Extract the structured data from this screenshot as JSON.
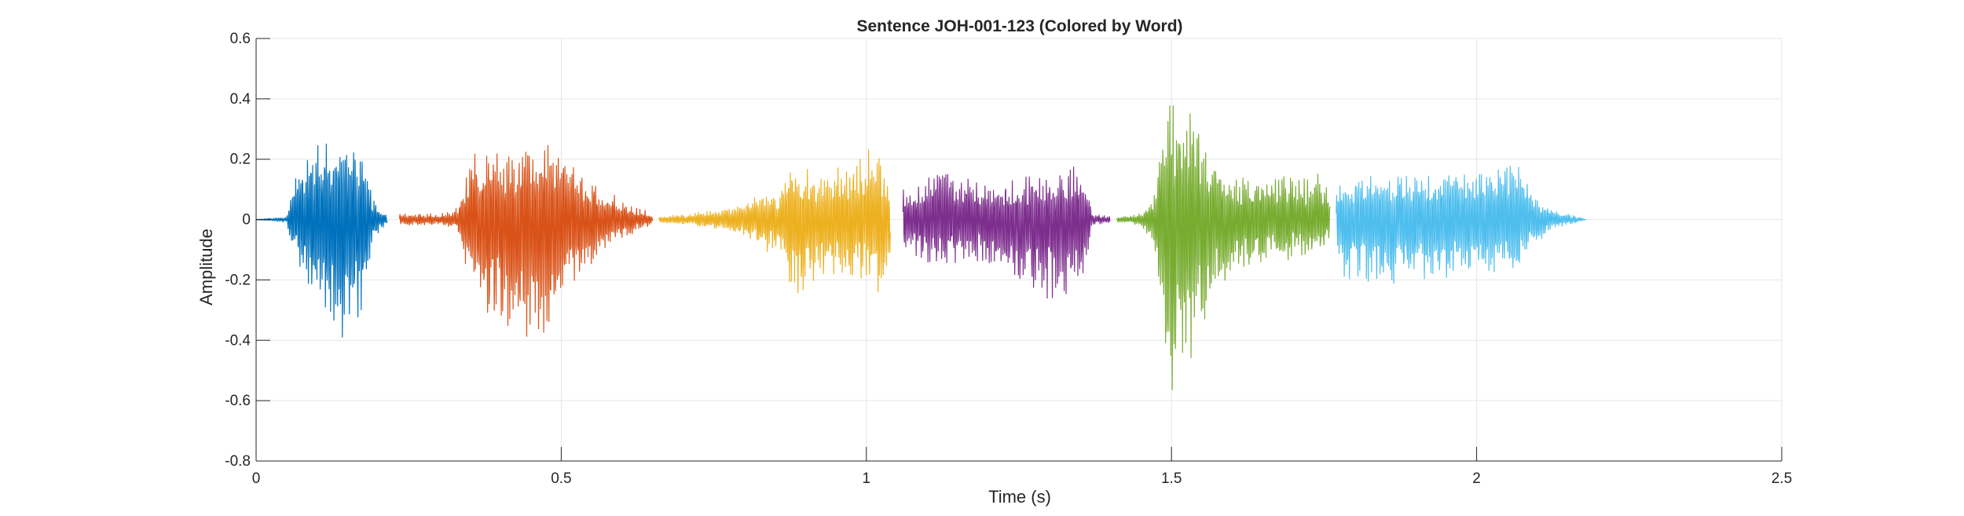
{
  "chart_data": {
    "type": "line",
    "title": "Sentence JOH-001-123 (Colored by Word)",
    "xlabel": "Time (s)",
    "ylabel": "Amplitude",
    "xlim": [
      0,
      2.5
    ],
    "ylim": [
      -0.8,
      0.6
    ],
    "xticks": [
      0,
      0.5,
      1,
      1.5,
      2,
      2.5
    ],
    "xtick_labels": [
      "0",
      "0.5",
      "1",
      "1.5",
      "2",
      "2.5"
    ],
    "yticks": [
      -0.8,
      -0.6,
      -0.4,
      -0.2,
      0,
      0.2,
      0.4,
      0.6
    ],
    "ytick_labels": [
      "-0.8",
      "-0.6",
      "-0.4",
      "-0.2",
      "0",
      "0.2",
      "0.4",
      "0.6"
    ],
    "grid": true,
    "legend": "none",
    "series": [
      {
        "color": "#0072BD",
        "time": [
          0.0,
          0.05,
          0.06,
          0.08,
          0.1,
          0.12,
          0.14,
          0.16,
          0.18,
          0.19,
          0.2,
          0.21,
          0.215
        ],
        "upper": [
          0.0,
          0.01,
          0.12,
          0.22,
          0.26,
          0.29,
          0.29,
          0.25,
          0.18,
          0.08,
          0.05,
          0.03,
          0.01
        ],
        "lower": [
          0.0,
          -0.01,
          -0.12,
          -0.22,
          -0.3,
          -0.4,
          -0.48,
          -0.4,
          -0.25,
          -0.08,
          -0.05,
          -0.03,
          -0.01
        ]
      },
      {
        "color": "#D95319",
        "time": [
          0.235,
          0.3,
          0.33,
          0.34,
          0.36,
          0.38,
          0.42,
          0.45,
          0.47,
          0.5,
          0.55,
          0.6,
          0.64,
          0.65
        ],
        "upper": [
          0.02,
          0.02,
          0.04,
          0.14,
          0.24,
          0.26,
          0.22,
          0.26,
          0.27,
          0.23,
          0.13,
          0.07,
          0.03,
          0.01
        ],
        "lower": [
          -0.02,
          -0.02,
          -0.04,
          -0.14,
          -0.26,
          -0.38,
          -0.4,
          -0.42,
          -0.38,
          -0.3,
          -0.15,
          -0.07,
          -0.03,
          -0.01
        ]
      },
      {
        "color": "#EDB120",
        "time": [
          0.66,
          0.75,
          0.8,
          0.84,
          0.86,
          0.87,
          0.88,
          0.92,
          0.96,
          1.0,
          1.02,
          1.04
        ],
        "upper": [
          0.01,
          0.03,
          0.06,
          0.1,
          0.08,
          0.22,
          0.2,
          0.15,
          0.18,
          0.24,
          0.25,
          0.1
        ],
        "lower": [
          -0.01,
          -0.03,
          -0.06,
          -0.12,
          -0.1,
          -0.2,
          -0.27,
          -0.22,
          -0.2,
          -0.22,
          -0.27,
          -0.1
        ]
      },
      {
        "color": "#7E2F8E",
        "time": [
          1.06,
          1.08,
          1.12,
          1.16,
          1.2,
          1.25,
          1.3,
          1.34,
          1.36,
          1.37,
          1.4
        ],
        "upper": [
          0.1,
          0.12,
          0.19,
          0.15,
          0.12,
          0.15,
          0.14,
          0.19,
          0.15,
          0.02,
          0.01
        ],
        "lower": [
          -0.1,
          -0.12,
          -0.18,
          -0.13,
          -0.18,
          -0.25,
          -0.27,
          -0.27,
          -0.18,
          -0.02,
          -0.01
        ]
      },
      {
        "color": "#77AC30",
        "time": [
          1.41,
          1.45,
          1.47,
          1.48,
          1.49,
          1.5,
          1.51,
          1.52,
          1.55,
          1.58,
          1.62,
          1.68,
          1.74,
          1.76
        ],
        "upper": [
          0.01,
          0.02,
          0.08,
          0.22,
          0.35,
          0.45,
          0.43,
          0.4,
          0.3,
          0.17,
          0.15,
          0.15,
          0.15,
          0.1
        ],
        "lower": [
          -0.01,
          -0.02,
          -0.08,
          -0.3,
          -0.45,
          -0.62,
          -0.6,
          -0.52,
          -0.38,
          -0.25,
          -0.18,
          -0.15,
          -0.12,
          -0.08
        ]
      },
      {
        "color": "#4DBEEE",
        "time": [
          1.77,
          1.78,
          1.82,
          1.86,
          1.9,
          1.95,
          2.0,
          2.04,
          2.07,
          2.09,
          2.12,
          2.15,
          2.18
        ],
        "upper": [
          0.08,
          0.14,
          0.15,
          0.15,
          0.16,
          0.17,
          0.17,
          0.19,
          0.2,
          0.1,
          0.04,
          0.02,
          0.0
        ],
        "lower": [
          -0.08,
          -0.2,
          -0.23,
          -0.22,
          -0.2,
          -0.2,
          -0.2,
          -0.18,
          -0.19,
          -0.1,
          -0.04,
          -0.02,
          0.0
        ]
      }
    ]
  }
}
